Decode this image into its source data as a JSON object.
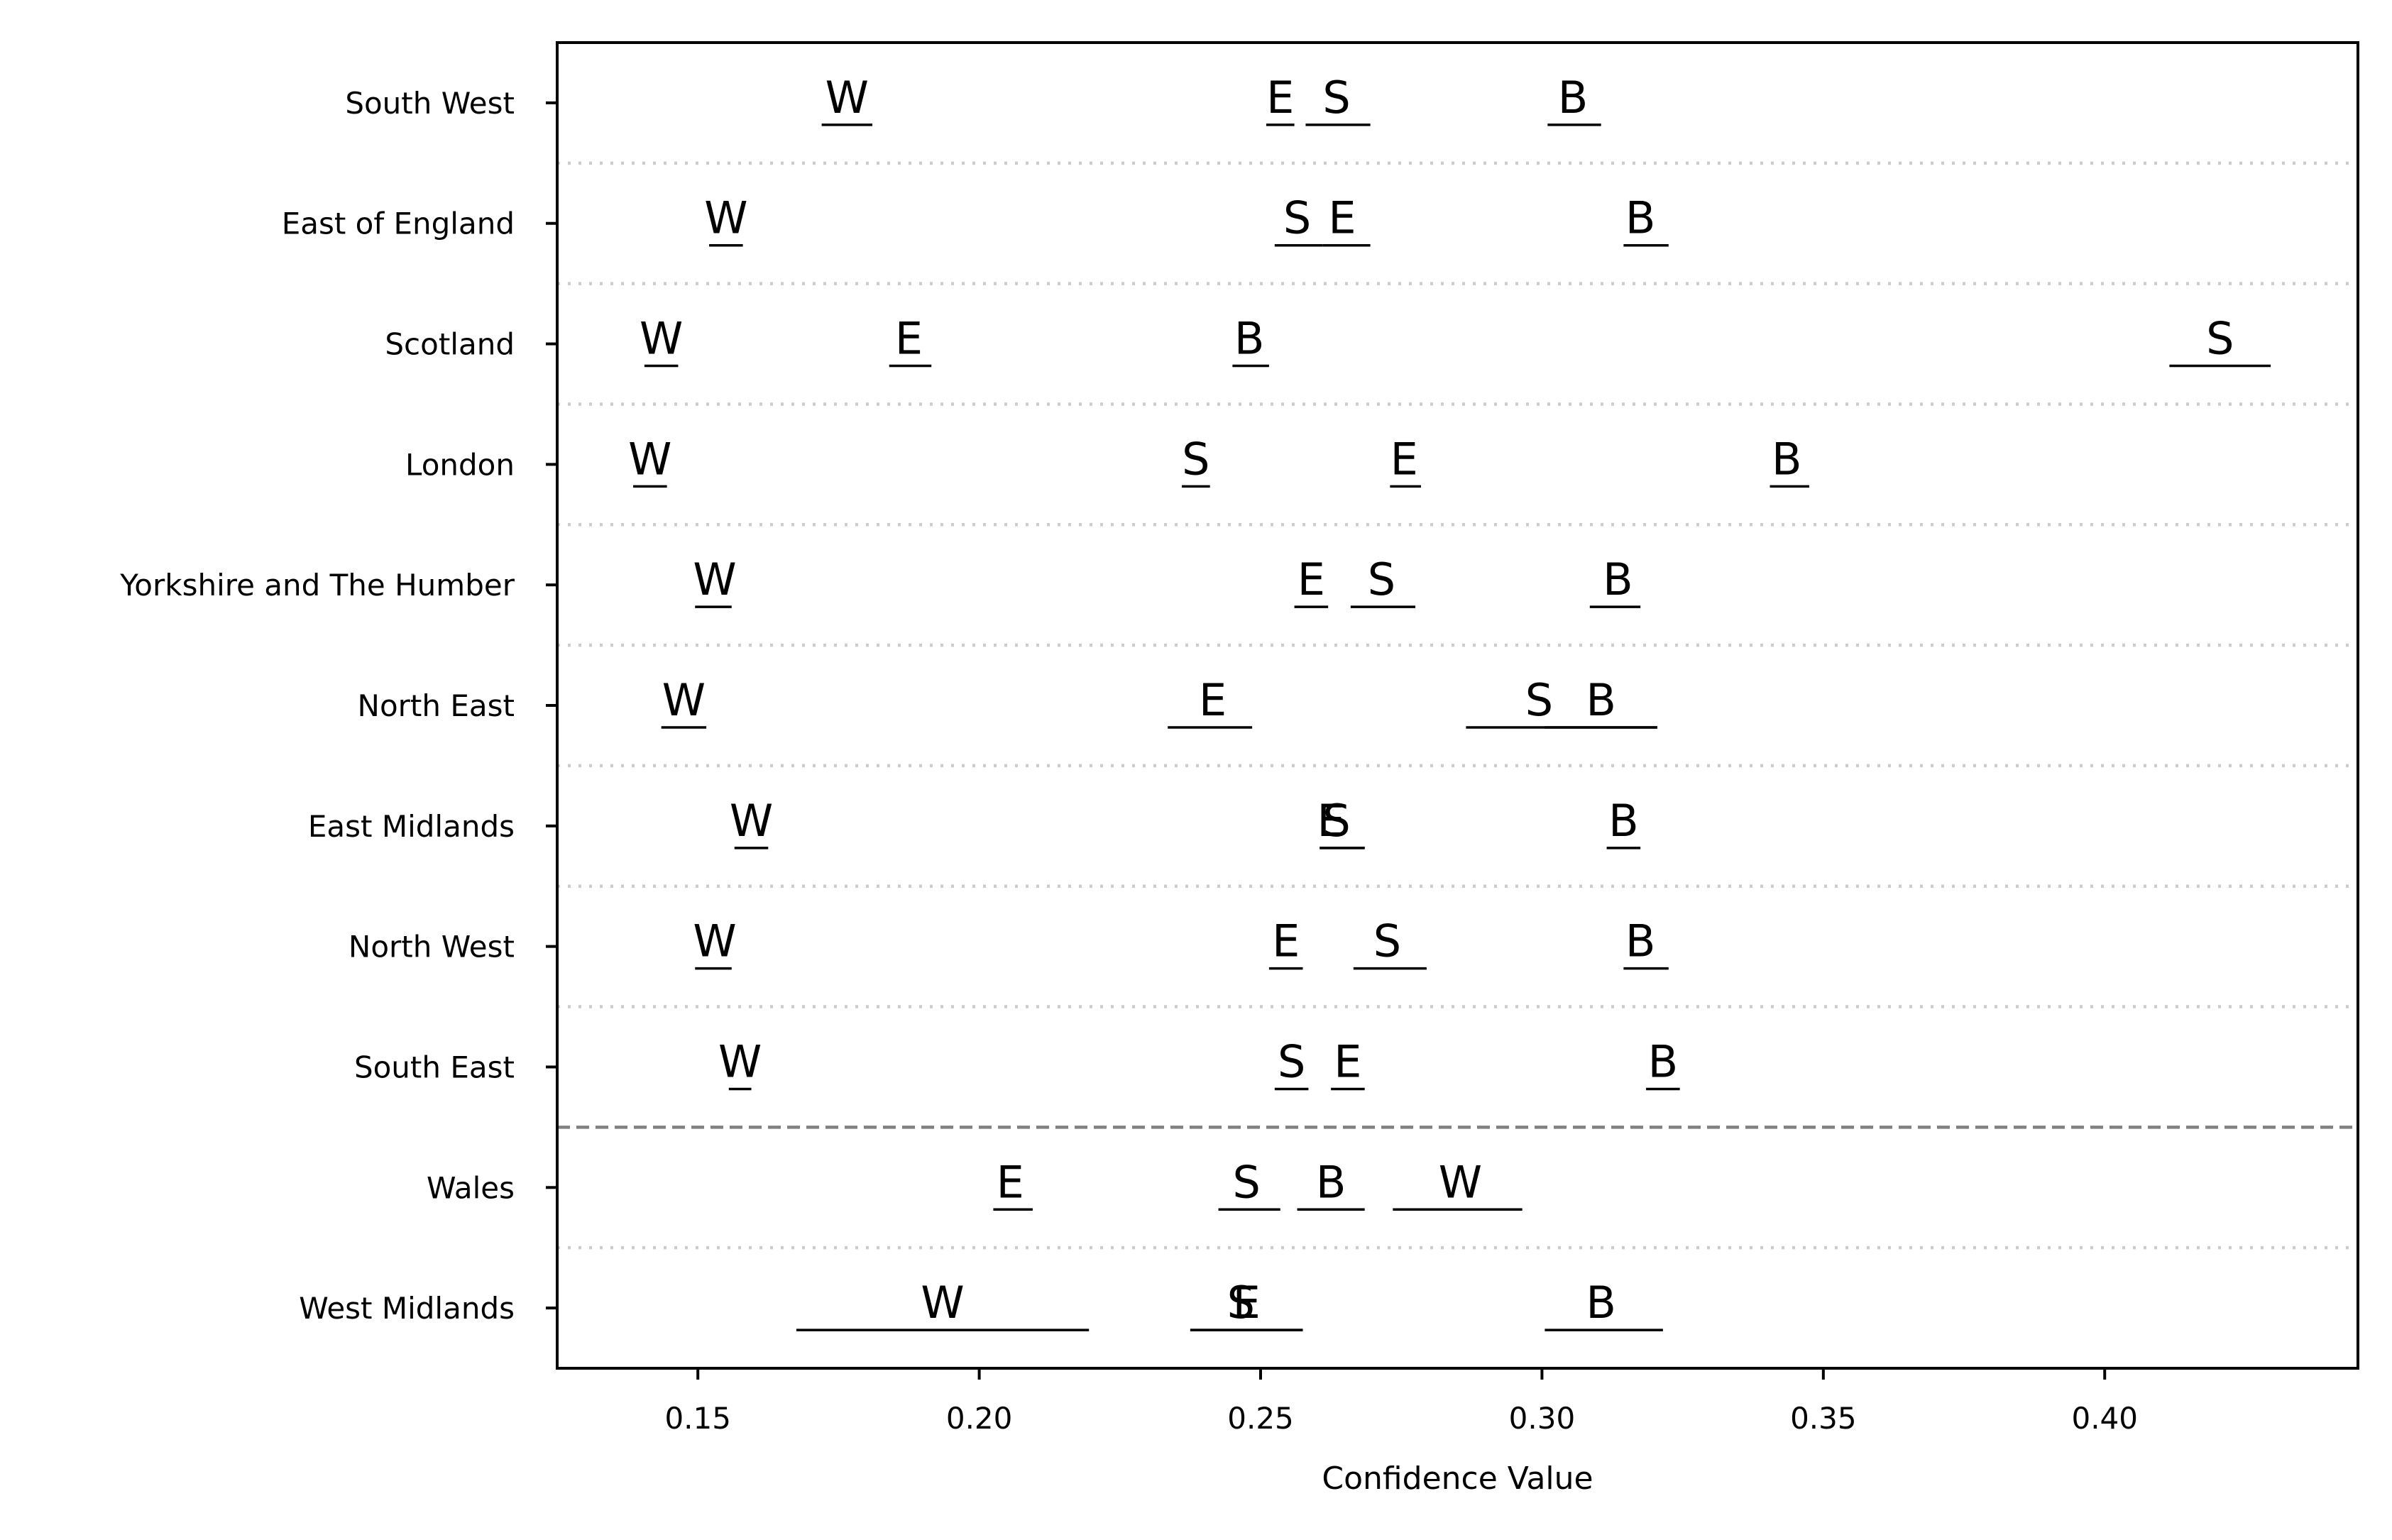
{
  "chart_data": {
    "type": "scatter",
    "xlabel": "Confidence Value",
    "ylabel": "",
    "title": "",
    "xlim": [
      0.125,
      0.445
    ],
    "xticks": [
      "0.15",
      "0.20",
      "0.25",
      "0.30",
      "0.35",
      "0.40"
    ],
    "xtick_values": [
      0.15,
      0.2,
      0.25,
      0.3,
      0.35,
      0.4
    ],
    "categories": [
      "South West",
      "East of England",
      "Scotland",
      "London",
      "Yorkshire and The Humber",
      "North East",
      "East Midlands",
      "North West",
      "South East",
      "Wales",
      "West Midlands"
    ],
    "separator_dashed_after_index": 8,
    "grid": "dotted row separators",
    "points": [
      {
        "category": "South West",
        "marks": [
          {
            "label": "W",
            "value": 0.1765,
            "low": 0.172,
            "high": 0.181
          },
          {
            "label": "E",
            "value": 0.2535,
            "low": 0.251,
            "high": 0.256
          },
          {
            "label": "S",
            "value": 0.2635,
            "low": 0.258,
            "high": 0.2695
          },
          {
            "label": "B",
            "value": 0.3055,
            "low": 0.301,
            "high": 0.3105
          }
        ]
      },
      {
        "category": "East of England",
        "marks": [
          {
            "label": "W",
            "value": 0.155,
            "low": 0.152,
            "high": 0.158
          },
          {
            "label": "S",
            "value": 0.2565,
            "low": 0.2525,
            "high": 0.261
          },
          {
            "label": "E",
            "value": 0.2645,
            "low": 0.261,
            "high": 0.2695
          },
          {
            "label": "B",
            "value": 0.3175,
            "low": 0.3145,
            "high": 0.3225
          }
        ]
      },
      {
        "category": "Scotland",
        "marks": [
          {
            "label": "W",
            "value": 0.1435,
            "low": 0.1405,
            "high": 0.1465
          },
          {
            "label": "E",
            "value": 0.1875,
            "low": 0.184,
            "high": 0.1915
          },
          {
            "label": "B",
            "value": 0.248,
            "low": 0.245,
            "high": 0.2515
          },
          {
            "label": "S",
            "value": 0.4205,
            "low": 0.4115,
            "high": 0.4295
          }
        ]
      },
      {
        "category": "London",
        "marks": [
          {
            "label": "W",
            "value": 0.1415,
            "low": 0.1385,
            "high": 0.1445
          },
          {
            "label": "S",
            "value": 0.2385,
            "low": 0.236,
            "high": 0.241
          },
          {
            "label": "E",
            "value": 0.2755,
            "low": 0.273,
            "high": 0.2785
          },
          {
            "label": "B",
            "value": 0.3435,
            "low": 0.3405,
            "high": 0.3475
          }
        ]
      },
      {
        "category": "Yorkshire and The Humber",
        "marks": [
          {
            "label": "W",
            "value": 0.153,
            "low": 0.1495,
            "high": 0.156
          },
          {
            "label": "E",
            "value": 0.259,
            "low": 0.256,
            "high": 0.262
          },
          {
            "label": "S",
            "value": 0.2715,
            "low": 0.266,
            "high": 0.2775
          },
          {
            "label": "B",
            "value": 0.3135,
            "low": 0.3085,
            "high": 0.3175
          }
        ]
      },
      {
        "category": "North East",
        "marks": [
          {
            "label": "W",
            "value": 0.1475,
            "low": 0.1435,
            "high": 0.1515
          },
          {
            "label": "E",
            "value": 0.2415,
            "low": 0.2335,
            "high": 0.2485
          },
          {
            "label": "S",
            "value": 0.2995,
            "low": 0.2865,
            "high": 0.3205
          },
          {
            "label": "B",
            "value": 0.3105,
            "low": 0.3005,
            "high": 0.3205
          }
        ]
      },
      {
        "category": "East Midlands",
        "marks": [
          {
            "label": "W",
            "value": 0.1595,
            "low": 0.1565,
            "high": 0.1625
          },
          {
            "label": "E",
            "value": 0.2625,
            "low": 0.2605,
            "high": 0.2685
          },
          {
            "label": "S",
            "value": 0.2635,
            "low": 0.2605,
            "high": 0.2685
          },
          {
            "label": "B",
            "value": 0.3145,
            "low": 0.3115,
            "high": 0.3175
          }
        ]
      },
      {
        "category": "North West",
        "marks": [
          {
            "label": "W",
            "value": 0.153,
            "low": 0.1495,
            "high": 0.156
          },
          {
            "label": "E",
            "value": 0.2545,
            "low": 0.2515,
            "high": 0.2575
          },
          {
            "label": "S",
            "value": 0.2725,
            "low": 0.2665,
            "high": 0.2795
          },
          {
            "label": "B",
            "value": 0.3175,
            "low": 0.3145,
            "high": 0.3225
          }
        ]
      },
      {
        "category": "South East",
        "marks": [
          {
            "label": "W",
            "value": 0.1575,
            "low": 0.1555,
            "high": 0.1595
          },
          {
            "label": "S",
            "value": 0.2555,
            "low": 0.2525,
            "high": 0.2585
          },
          {
            "label": "E",
            "value": 0.2655,
            "low": 0.2625,
            "high": 0.2685
          },
          {
            "label": "B",
            "value": 0.3215,
            "low": 0.3185,
            "high": 0.3245
          }
        ]
      },
      {
        "category": "Wales",
        "marks": [
          {
            "label": "E",
            "value": 0.2055,
            "low": 0.2025,
            "high": 0.2095
          },
          {
            "label": "S",
            "value": 0.2475,
            "low": 0.2425,
            "high": 0.2535
          },
          {
            "label": "B",
            "value": 0.2625,
            "low": 0.2565,
            "high": 0.2685
          },
          {
            "label": "W",
            "value": 0.2855,
            "low": 0.2735,
            "high": 0.2965
          }
        ]
      },
      {
        "category": "West Midlands",
        "marks": [
          {
            "label": "W",
            "value": 0.1935,
            "low": 0.1675,
            "high": 0.2195
          },
          {
            "label": "S",
            "value": 0.2465,
            "low": 0.2375,
            "high": 0.2575
          },
          {
            "label": "E",
            "value": 0.2475,
            "low": 0.2375,
            "high": 0.2575
          },
          {
            "label": "B",
            "value": 0.3105,
            "low": 0.3005,
            "high": 0.3215
          }
        ]
      }
    ]
  }
}
